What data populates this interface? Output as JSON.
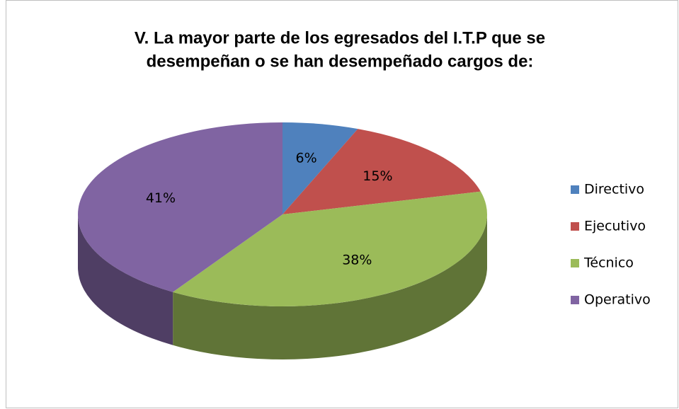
{
  "chart_data": {
    "type": "pie",
    "title": [
      "V. La mayor parte de los egresados del I.T.P que se",
      "desempeñan o se han desempeñado cargos de:"
    ],
    "categories": [
      "Directivo",
      "Ejecutivo",
      "Técnico",
      "Operativo"
    ],
    "values": [
      6,
      15,
      38,
      41
    ],
    "value_labels": [
      "6%",
      "15%",
      "38%",
      "41%"
    ],
    "colors": [
      "#4f81bd",
      "#c0504d",
      "#9bbb59",
      "#8064a2"
    ],
    "legend": "right"
  }
}
